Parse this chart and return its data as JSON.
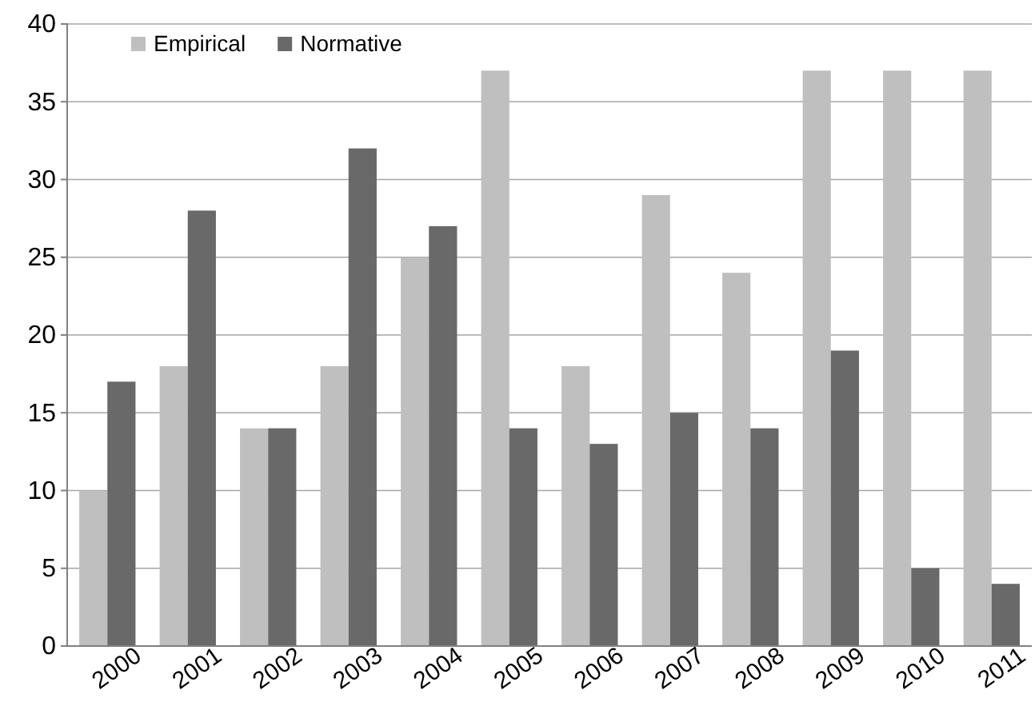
{
  "chart_data": {
    "type": "bar",
    "categories": [
      "2000",
      "2001",
      "2002",
      "2003",
      "2004",
      "2005",
      "2006",
      "2007",
      "2008",
      "2009",
      "2010",
      "2011"
    ],
    "series": [
      {
        "name": "Empirical",
        "color": "#bfbfbf",
        "values": [
          10,
          18,
          14,
          18,
          25,
          37,
          18,
          29,
          24,
          37,
          37,
          37
        ]
      },
      {
        "name": "Normative",
        "color": "#696969",
        "values": [
          17,
          28,
          14,
          32,
          27,
          14,
          13,
          15,
          14,
          19,
          5,
          4
        ]
      }
    ],
    "ylim": [
      0,
      40
    ],
    "yticks": [
      0,
      5,
      10,
      15,
      20,
      25,
      30,
      35,
      40
    ],
    "grid": "y",
    "legend": "top left"
  }
}
